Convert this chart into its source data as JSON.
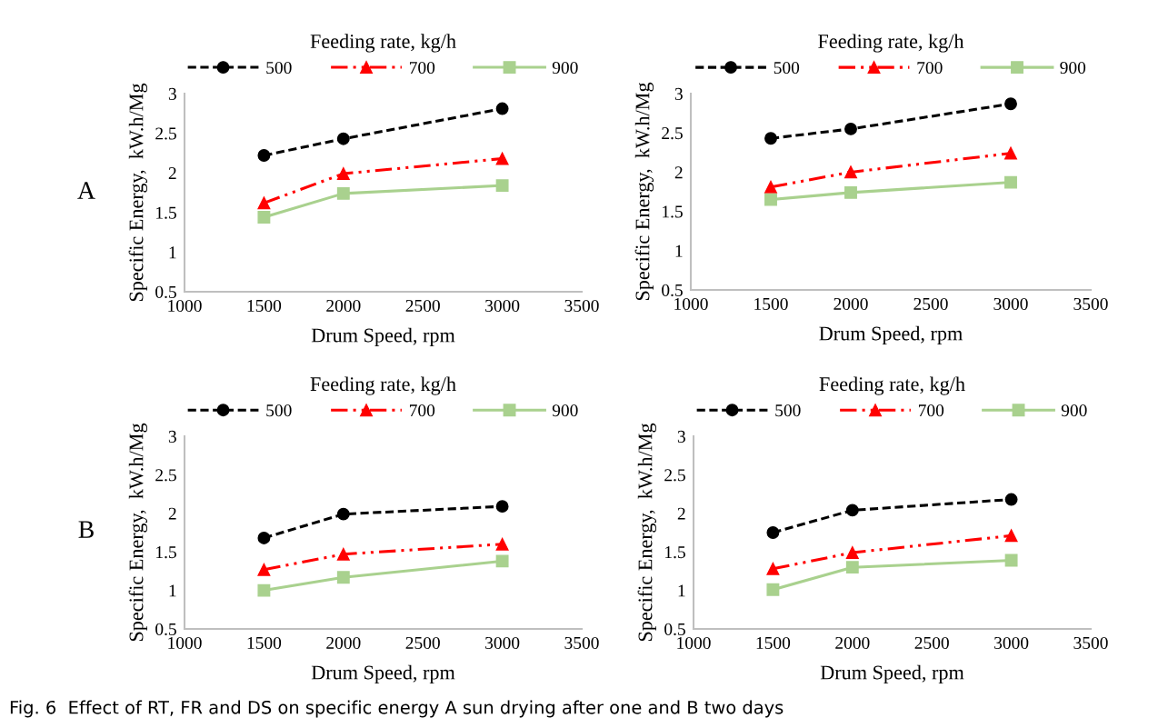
{
  "chart_data": [
    {
      "type": "line",
      "legend_title": "Feeding rate, kg/h",
      "xlabel": "Drum Speed, rpm",
      "ylabel": "Specific Energy,  kW.h/Mg",
      "annotations": [
        "A"
      ],
      "x": [
        1500,
        2000,
        3000
      ],
      "xlim": [
        1000,
        3500
      ],
      "xticks": [
        1000,
        1500,
        2000,
        2500,
        3000,
        3500
      ],
      "ylim": [
        0.5,
        3
      ],
      "yticks": [
        0.5,
        1,
        1.5,
        2,
        2.5,
        3
      ],
      "legend": "top",
      "grid": false,
      "series": [
        {
          "name": "500",
          "color": "#000000",
          "marker": "circle",
          "line_style": "dashed",
          "values": [
            2.22,
            2.43,
            2.81
          ]
        },
        {
          "name": "700",
          "color": "#ff0000",
          "marker": "triangle",
          "line_style": "dashdot",
          "values": [
            1.62,
            1.99,
            2.18
          ]
        },
        {
          "name": "900",
          "color": "#a9d18e",
          "marker": "square",
          "line_style": "solid",
          "values": [
            1.44,
            1.74,
            1.84
          ]
        }
      ]
    },
    {
      "type": "line",
      "legend_title": "Feeding rate, kg/h",
      "xlabel": "Drum Speed, rpm",
      "ylabel": "Specific Energy,  kW.h/Mg",
      "x": [
        1500,
        2000,
        3000
      ],
      "xlim": [
        1000,
        3500
      ],
      "xticks": [
        1000,
        1500,
        2000,
        2500,
        3000,
        3500
      ],
      "ylim": [
        0.5,
        3
      ],
      "yticks": [
        0.5,
        1,
        1.5,
        2,
        2.5,
        3
      ],
      "legend": "top",
      "grid": false,
      "series": [
        {
          "name": "500",
          "color": "#000000",
          "marker": "circle",
          "line_style": "dashed",
          "values": [
            2.43,
            2.55,
            2.87
          ]
        },
        {
          "name": "700",
          "color": "#ff0000",
          "marker": "triangle",
          "line_style": "dashdot",
          "values": [
            1.81,
            2.0,
            2.24
          ]
        },
        {
          "name": "900",
          "color": "#a9d18e",
          "marker": "square",
          "line_style": "solid",
          "values": [
            1.65,
            1.74,
            1.87
          ]
        }
      ]
    },
    {
      "type": "line",
      "legend_title": "Feeding rate, kg/h",
      "xlabel": "Drum Speed, rpm",
      "ylabel": "Specific Energy,  kW.h/Mg",
      "annotations": [
        "B"
      ],
      "x": [
        1500,
        2000,
        3000
      ],
      "xlim": [
        1000,
        3500
      ],
      "xticks": [
        1000,
        1500,
        2000,
        2500,
        3000,
        3500
      ],
      "ylim": [
        0.5,
        3
      ],
      "yticks": [
        0.5,
        1,
        1.5,
        2,
        2.5,
        3
      ],
      "legend": "top",
      "grid": false,
      "series": [
        {
          "name": "500",
          "color": "#000000",
          "marker": "circle",
          "line_style": "dashed",
          "values": [
            1.68,
            1.99,
            2.09
          ]
        },
        {
          "name": "700",
          "color": "#ff0000",
          "marker": "triangle",
          "line_style": "dashdot",
          "values": [
            1.27,
            1.47,
            1.6
          ]
        },
        {
          "name": "900",
          "color": "#a9d18e",
          "marker": "square",
          "line_style": "solid",
          "values": [
            1.0,
            1.17,
            1.38
          ]
        }
      ]
    },
    {
      "type": "line",
      "legend_title": "Feeding rate, kg/h",
      "xlabel": "Drum Speed, rpm",
      "ylabel": "Specific Energy,  kW.h/Mg",
      "annotations": [
        "Fig. 6  Effect of RT, FR and DS on specific energy A sun drying after one and B two days"
      ],
      "x": [
        1500,
        2000,
        3000
      ],
      "xlim": [
        1000,
        3500
      ],
      "xticks": [
        1000,
        1500,
        2000,
        2500,
        3000,
        3500
      ],
      "ylim": [
        0.5,
        3
      ],
      "yticks": [
        0.5,
        1,
        1.5,
        2,
        2.5,
        3
      ],
      "legend": "top",
      "grid": false,
      "series": [
        {
          "name": "500",
          "color": "#000000",
          "marker": "circle",
          "line_style": "dashed",
          "values": [
            1.75,
            2.04,
            2.18
          ]
        },
        {
          "name": "700",
          "color": "#ff0000",
          "marker": "triangle",
          "line_style": "dashdot",
          "values": [
            1.28,
            1.49,
            1.71
          ]
        },
        {
          "name": "900",
          "color": "#a9d18e",
          "marker": "square",
          "line_style": "solid",
          "values": [
            1.01,
            1.3,
            1.39
          ]
        }
      ]
    }
  ]
}
